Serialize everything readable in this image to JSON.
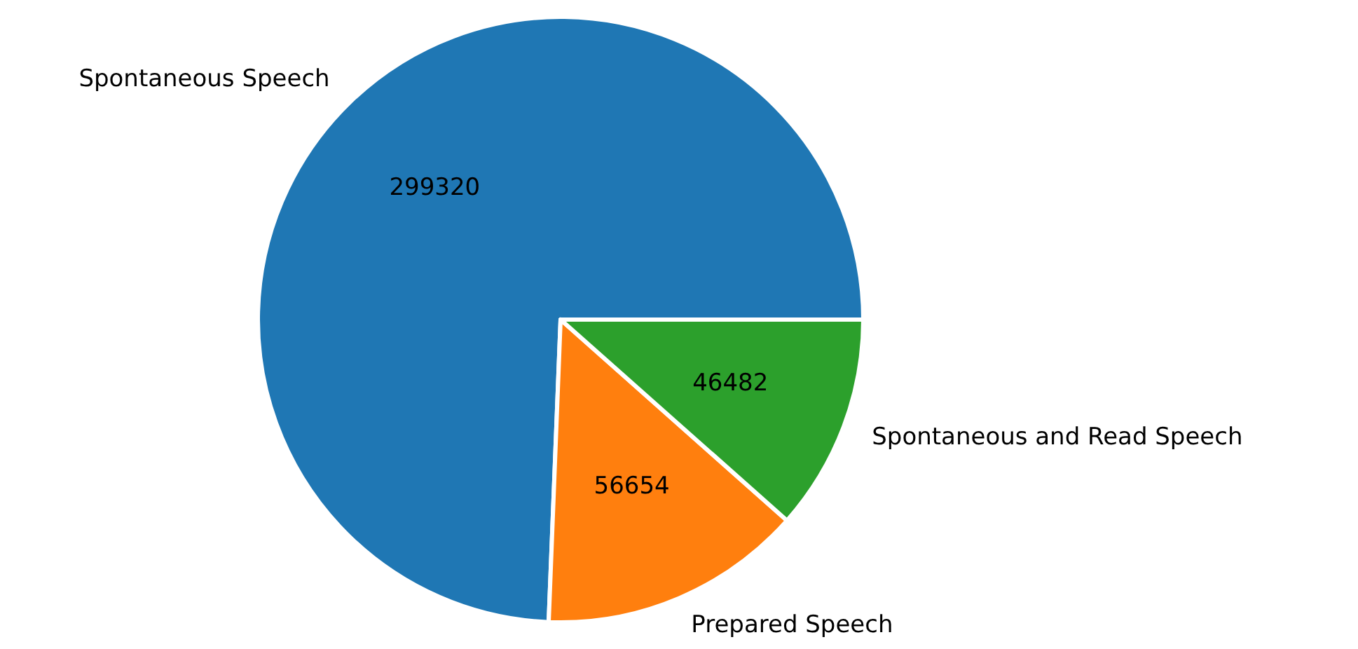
{
  "chart_data": {
    "type": "pie",
    "categories": [
      "Spontaneous Speech",
      "Prepared Speech",
      "Spontaneous and Read Speech"
    ],
    "values": [
      299320,
      56654,
      46482
    ],
    "colors": [
      "#1f77b4",
      "#ff7f0e",
      "#2ca02c"
    ],
    "data_labels": true
  }
}
